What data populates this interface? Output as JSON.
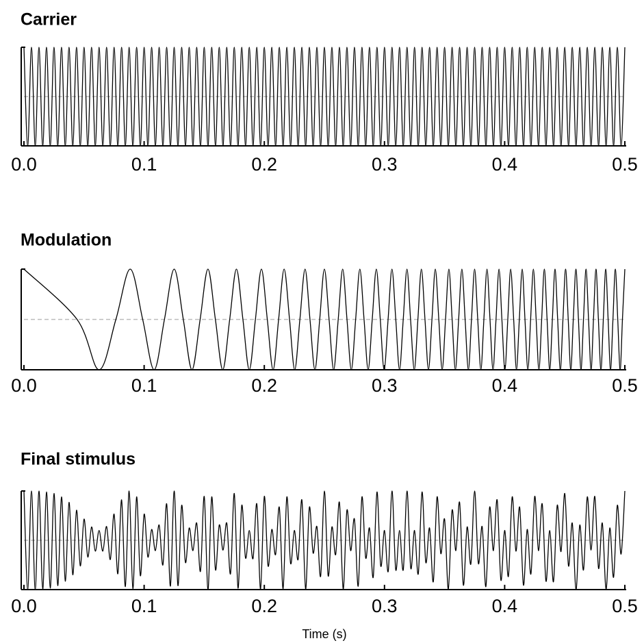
{
  "chart_data": [
    {
      "type": "line",
      "title": "Carrier",
      "color": "#000000",
      "hline": 0,
      "hline_color": "#bbbbbb",
      "xlim": [
        0,
        0.5
      ],
      "ylim": [
        -1,
        1
      ],
      "xticks": [
        {
          "value": 0,
          "label": "0.0"
        },
        0.1,
        0.2,
        0.3,
        0.4,
        0.5
      ],
      "x": [
        0,
        0.003125,
        0.00625,
        0.009375,
        0.0125,
        0.015625,
        0.01875,
        0.021875,
        0.025,
        0.028125,
        0.03125,
        0.034375,
        0.0375,
        0.040625,
        0.04375,
        0.046875,
        0.05,
        0.053125,
        0.05625,
        0.059375,
        0.0625,
        0.065625,
        0.06875,
        0.071875,
        0.075,
        0.078125,
        0.08125,
        0.084375,
        0.0875,
        0.090625,
        0.09375,
        0.096875,
        0.1,
        0.103125,
        0.10625,
        0.109375,
        0.1125,
        0.115625,
        0.11875,
        0.121875,
        0.125,
        0.128125,
        0.13125,
        0.134375,
        0.1375,
        0.140625,
        0.14375,
        0.146875,
        0.15,
        0.153125,
        0.15625,
        0.159375,
        0.1625,
        0.165625,
        0.16875,
        0.171875,
        0.175,
        0.178125,
        0.18125,
        0.184375,
        0.1875,
        0.190625,
        0.19375,
        0.196875,
        0.2,
        0.203125,
        0.20625,
        0.209375,
        0.2125,
        0.215625,
        0.21875,
        0.221875,
        0.225,
        0.228125,
        0.23125,
        0.234375,
        0.2375,
        0.240625,
        0.24375,
        0.246875,
        0.25,
        0.253125,
        0.25625,
        0.259375,
        0.2625,
        0.265625,
        0.26875,
        0.271875,
        0.275,
        0.278125,
        0.28125,
        0.284375,
        0.2875,
        0.290625,
        0.29375,
        0.296875,
        0.3,
        0.303125,
        0.30625,
        0.309375,
        0.3125,
        0.315625,
        0.31875,
        0.321875,
        0.325,
        0.328125,
        0.33125,
        0.334375,
        0.3375,
        0.340625,
        0.34375,
        0.346875,
        0.35,
        0.353125,
        0.35625,
        0.359375,
        0.3625,
        0.365625,
        0.36875,
        0.371875,
        0.375,
        0.378125,
        0.38125,
        0.384375,
        0.3875,
        0.390625,
        0.39375,
        0.396875,
        0.4,
        0.403125,
        0.40625,
        0.409375,
        0.4125,
        0.415625,
        0.41875,
        0.421875,
        0.425,
        0.428125,
        0.43125,
        0.434375,
        0.4375,
        0.440625,
        0.44375,
        0.446875,
        0.45,
        0.453125,
        0.45625,
        0.459375,
        0.4625,
        0.465625,
        0.46875,
        0.471875,
        0.475,
        0.478125,
        0.48125,
        0.484375,
        0.4875,
        0.490625,
        0.49375,
        0.496875,
        0.5
      ],
      "values": [
        1,
        -1,
        1,
        -1,
        1,
        -1,
        1,
        -1,
        1,
        -1,
        1,
        -1,
        1,
        -1,
        1,
        -1,
        1,
        -1,
        1,
        -1,
        1,
        -1,
        1,
        -1,
        1,
        -1,
        1,
        -1,
        1,
        -1,
        1,
        -1,
        1,
        -1,
        1,
        -1,
        1,
        -1,
        1,
        -1,
        1,
        -1,
        1,
        -1,
        1,
        -1,
        1,
        -1,
        1,
        -1,
        1,
        -1,
        1,
        -1,
        1,
        -1,
        1,
        -1,
        1,
        -1,
        1,
        -1,
        1,
        -1,
        1,
        -1,
        1,
        -1,
        1,
        -1,
        1,
        -1,
        1,
        -1,
        1,
        -1,
        1,
        -1,
        1,
        -1,
        1,
        -1,
        1,
        -1,
        1,
        -1,
        1,
        -1,
        1,
        -1,
        1,
        -1,
        1,
        -1,
        1,
        -1,
        1,
        -1,
        1,
        -1,
        1,
        -1,
        1,
        -1,
        1,
        -1,
        1,
        -1,
        1,
        -1,
        1,
        -1,
        1,
        -1,
        1,
        -1,
        1,
        -1,
        1,
        -1,
        1,
        -1,
        1,
        -1,
        1,
        -1,
        1,
        -1,
        1,
        -1,
        1,
        -1,
        1,
        -1,
        1,
        -1,
        1,
        -1,
        1,
        -1,
        1,
        -1,
        1,
        -1,
        1,
        -1,
        1,
        -1,
        1,
        -1,
        1,
        -1,
        1,
        -1,
        1,
        -1,
        1,
        -1,
        1,
        -1,
        1
      ]
    },
    {
      "type": "line",
      "title": "Modulation",
      "color": "#000000",
      "hline": 0,
      "hline_color": "#bbbbbb",
      "xlim": [
        0,
        0.5
      ],
      "ylim": [
        -1,
        1
      ],
      "xticks": [
        {
          "value": 0,
          "label": "0.0"
        },
        0.1,
        0.2,
        0.3,
        0.4,
        0.5
      ],
      "x": [
        0,
        0.0442,
        0.0625,
        0.0765,
        0.0884,
        0.0988,
        0.1083,
        0.1169,
        0.125,
        0.1326,
        0.1398,
        0.1466,
        0.1531,
        0.1593,
        0.1654,
        0.1712,
        0.1768,
        0.1822,
        0.1875,
        0.1926,
        0.1976,
        0.2025,
        0.2073,
        0.2119,
        0.2165,
        0.221,
        0.2253,
        0.2296,
        0.2339,
        0.238,
        0.2421,
        0.2461,
        0.25,
        0.2539,
        0.2577,
        0.2615,
        0.2652,
        0.2688,
        0.2724,
        0.276,
        0.2795,
        0.283,
        0.2864,
        0.2898,
        0.2932,
        0.2965,
        0.2997,
        0.303,
        0.3062,
        0.3094,
        0.3125,
        0.3156,
        0.3187,
        0.3217,
        0.3248,
        0.3278,
        0.3307,
        0.3337,
        0.3366,
        0.3395,
        0.3423,
        0.3452,
        0.348,
        0.3508,
        0.3536,
        0.3563,
        0.359,
        0.3617,
        0.3644,
        0.3671,
        0.3698,
        0.3724,
        0.375,
        0.3776,
        0.3802,
        0.3827,
        0.3853,
        0.3878,
        0.3903,
        0.3928,
        0.3953,
        0.3977,
        0.4002,
        0.4026,
        0.405,
        0.4075,
        0.4098,
        0.4122,
        0.4146,
        0.4169,
        0.4193,
        0.4216,
        0.4239,
        0.4262,
        0.4285,
        0.4308,
        0.433,
        0.4353,
        0.4375,
        0.4397,
        0.4419,
        0.4441,
        0.4463,
        0.4485,
        0.4507,
        0.4529,
        0.455,
        0.4571,
        0.4593,
        0.4614,
        0.4635,
        0.4656,
        0.4677,
        0.4698,
        0.4719,
        0.4739,
        0.476,
        0.478,
        0.4801,
        0.4821,
        0.4841,
        0.4861,
        0.4881,
        0.4901,
        0.4921,
        0.4941,
        0.4961,
        0.498,
        0.5
      ],
      "values": [
        1,
        0,
        -1,
        0,
        1,
        0,
        -1,
        0,
        1,
        0,
        -1,
        0,
        1,
        0,
        -1,
        0,
        1,
        0,
        -1,
        0,
        1,
        0,
        -1,
        0,
        1,
        0,
        -1,
        0,
        1,
        0,
        -1,
        0,
        1,
        0,
        -1,
        0,
        1,
        0,
        -1,
        0,
        1,
        0,
        -1,
        0,
        1,
        0,
        -1,
        0,
        1,
        0,
        -1,
        0,
        1,
        0,
        -1,
        0,
        1,
        0,
        -1,
        0,
        1,
        0,
        -1,
        0,
        1,
        0,
        -1,
        0,
        1,
        0,
        -1,
        0,
        1,
        0,
        -1,
        0,
        1,
        0,
        -1,
        0,
        1,
        0,
        -1,
        0,
        1,
        0,
        -1,
        0,
        1,
        0,
        -1,
        0,
        1,
        0,
        -1,
        0,
        1,
        0,
        -1,
        0,
        1,
        0,
        -1,
        0,
        1,
        0,
        -1,
        0,
        1,
        0,
        -1,
        0,
        1,
        0,
        -1,
        0,
        1,
        0,
        -1,
        0,
        1,
        0,
        -1,
        0,
        1,
        0,
        -1,
        0,
        1
      ]
    },
    {
      "type": "line",
      "title": "Final stimulus",
      "xlabel": "Time (s)",
      "color": "#000000",
      "hline": 0,
      "hline_color": "#bbbbbb",
      "xlim": [
        0,
        0.5
      ],
      "ylim": [
        -1,
        1
      ],
      "xticks": [
        {
          "value": 0,
          "label": "0.0"
        },
        0.1,
        0.2,
        0.3,
        0.4,
        0.5
      ],
      "x": [
        0,
        0.003125,
        0.00625,
        0.009375,
        0.0125,
        0.015625,
        0.01875,
        0.021875,
        0.025,
        0.028125,
        0.03125,
        0.034375,
        0.0375,
        0.040625,
        0.04375,
        0.046875,
        0.05,
        0.053125,
        0.05625,
        0.059375,
        0.0625,
        0.065625,
        0.06875,
        0.071875,
        0.075,
        0.078125,
        0.08125,
        0.084375,
        0.0875,
        0.090625,
        0.09375,
        0.096875,
        0.1,
        0.103125,
        0.10625,
        0.109375,
        0.1125,
        0.115625,
        0.11875,
        0.121875,
        0.125,
        0.128125,
        0.13125,
        0.134375,
        0.1375,
        0.140625,
        0.14375,
        0.146875,
        0.15,
        0.153125,
        0.15625,
        0.159375,
        0.1625,
        0.165625,
        0.16875,
        0.171875,
        0.175,
        0.178125,
        0.18125,
        0.184375,
        0.1875,
        0.190625,
        0.19375,
        0.196875,
        0.2,
        0.203125,
        0.20625,
        0.209375,
        0.2125,
        0.215625,
        0.21875,
        0.221875,
        0.225,
        0.228125,
        0.23125,
        0.234375,
        0.2375,
        0.240625,
        0.24375,
        0.246875,
        0.25,
        0.253125,
        0.25625,
        0.259375,
        0.2625,
        0.265625,
        0.26875,
        0.271875,
        0.275,
        0.278125,
        0.28125,
        0.284375,
        0.2875,
        0.290625,
        0.29375,
        0.296875,
        0.3,
        0.303125,
        0.30625,
        0.309375,
        0.3125,
        0.315625,
        0.31875,
        0.321875,
        0.325,
        0.328125,
        0.33125,
        0.334375,
        0.3375,
        0.340625,
        0.34375,
        0.346875,
        0.35,
        0.353125,
        0.35625,
        0.359375,
        0.3625,
        0.365625,
        0.36875,
        0.371875,
        0.375,
        0.378125,
        0.38125,
        0.384375,
        0.3875,
        0.390625,
        0.39375,
        0.396875,
        0.4,
        0.403125,
        0.40625,
        0.409375,
        0.4125,
        0.415625,
        0.41875,
        0.421875,
        0.425,
        0.428125,
        0.43125,
        0.434375,
        0.4375,
        0.440625,
        0.44375,
        0.446875,
        0.45,
        0.453125,
        0.45625,
        0.459375,
        0.4625,
        0.465625,
        0.46875,
        0.471875,
        0.475,
        0.478125,
        0.48125,
        0.484375,
        0.4875,
        0.490625,
        0.49375,
        0.496875,
        0.5
      ],
      "values": [
        1,
        -1,
        1,
        -1,
        1,
        -0.99,
        0.98,
        -0.97,
        0.95,
        -0.92,
        0.88,
        -0.83,
        0.77,
        -0.7,
        0.61,
        -0.52,
        0.43,
        -0.34,
        0.27,
        -0.22,
        0.2,
        -0.22,
        0.28,
        -0.39,
        0.53,
        -0.68,
        0.82,
        -0.94,
        1,
        -0.98,
        0.88,
        -0.72,
        0.53,
        -0.34,
        0.22,
        -0.21,
        0.31,
        -0.5,
        0.74,
        -0.93,
        1,
        -0.92,
        0.71,
        -0.45,
        0.25,
        -0.21,
        0.35,
        -0.63,
        0.89,
        -1,
        0.88,
        -0.6,
        0.31,
        -0.2,
        0.35,
        -0.68,
        0.95,
        -0.97,
        0.71,
        -0.36,
        0.2,
        -0.37,
        0.74,
        -0.99,
        0.89,
        -0.52,
        0.22,
        -0.29,
        0.67,
        -0.98,
        0.88,
        -0.47,
        0.2,
        -0.39,
        0.82,
        -0.99,
        0.67,
        -0.26,
        0.28,
        -0.73,
        1,
        -0.72,
        0.27,
        -0.29,
        0.77,
        -0.99,
        0.61,
        -0.21,
        0.43,
        -0.93,
        0.88,
        -0.36,
        0.25,
        -0.75,
        0.98,
        -0.52,
        0.2,
        -0.63,
        1,
        -0.6,
        0.2,
        -0.6,
        1,
        -0.57,
        0.2,
        -0.68,
        0.98,
        -0.45,
        0.25,
        -0.84,
        0.88,
        -0.27,
        0.43,
        -0.99,
        0.61,
        -0.21,
        0.77,
        -0.91,
        0.27,
        -0.48,
        1,
        -0.47,
        0.28,
        -0.94,
        0.67,
        -0.21,
        0.82,
        -0.81,
        0.2,
        -0.73,
        0.88,
        -0.22,
        0.67,
        -0.91,
        0.22,
        -0.68,
        0.89,
        -0.21,
        0.74,
        -0.83,
        0.2,
        -0.84,
        0.71,
        -0.23,
        0.95,
        -0.52,
        0.35,
        -1,
        0.31,
        -0.6,
        0.88,
        -0.2,
        0.89,
        -0.57,
        0.35,
        -0.99,
        0.25,
        -0.75,
        0.71,
        -0.28,
        1
      ]
    }
  ]
}
